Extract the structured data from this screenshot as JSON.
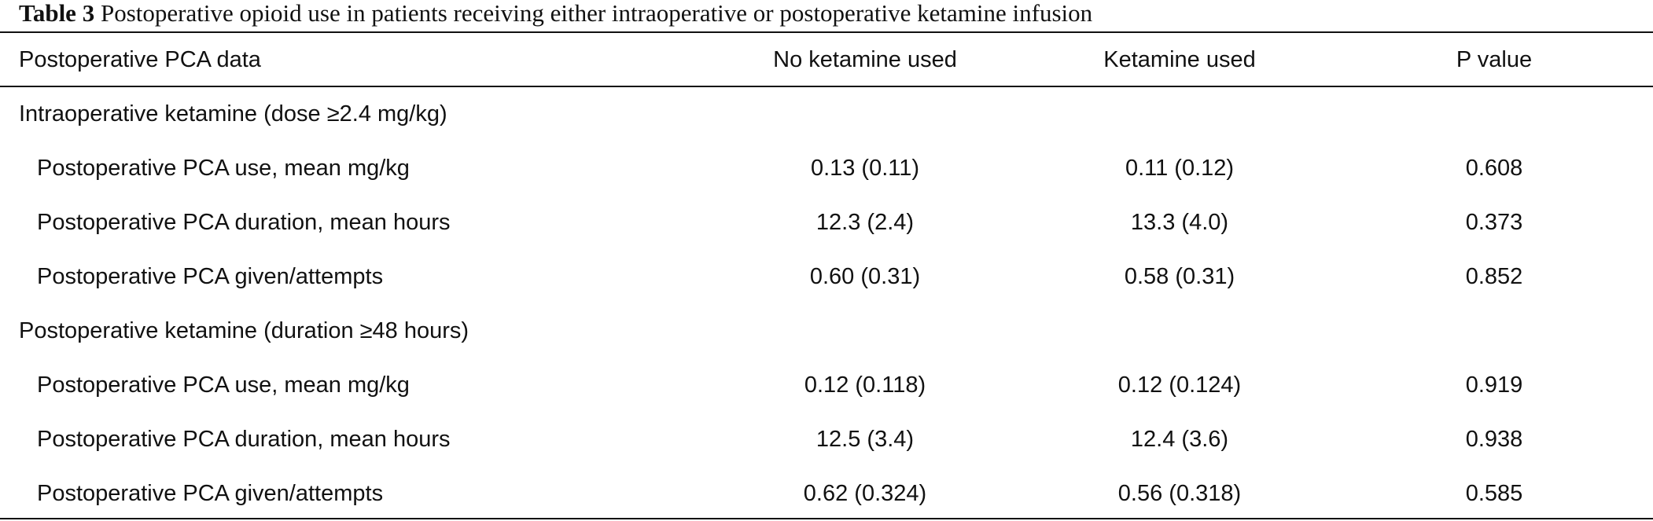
{
  "caption": {
    "label": "Table 3",
    "text": "Postoperative opioid use in patients receiving either intraoperative or postoperative ketamine infusion"
  },
  "headers": [
    "Postoperative PCA data",
    "No ketamine used",
    "Ketamine used",
    "P value"
  ],
  "sections": [
    {
      "title": "Intraoperative ketamine (dose ≥2.4 mg/kg)",
      "rows": [
        {
          "label": "Postoperative PCA use, mean mg/kg",
          "no_ketamine": "0.13 (0.11)",
          "ketamine": "0.11 (0.12)",
          "p_value": "0.608"
        },
        {
          "label": "Postoperative PCA duration, mean hours",
          "no_ketamine": "12.3 (2.4)",
          "ketamine": "13.3 (4.0)",
          "p_value": "0.373"
        },
        {
          "label": "Postoperative PCA given/attempts",
          "no_ketamine": "0.60 (0.31)",
          "ketamine": "0.58 (0.31)",
          "p_value": "0.852"
        }
      ]
    },
    {
      "title": "Postoperative ketamine (duration ≥48 hours)",
      "rows": [
        {
          "label": "Postoperative PCA use, mean mg/kg",
          "no_ketamine": "0.12 (0.118)",
          "ketamine": "0.12 (0.124)",
          "p_value": "0.919"
        },
        {
          "label": "Postoperative PCA duration, mean hours",
          "no_ketamine": "12.5 (3.4)",
          "ketamine": "12.4 (3.6)",
          "p_value": "0.938"
        },
        {
          "label": "Postoperative PCA given/attempts",
          "no_ketamine": "0.62 (0.324)",
          "ketamine": "0.56 (0.318)",
          "p_value": "0.585"
        }
      ]
    }
  ]
}
